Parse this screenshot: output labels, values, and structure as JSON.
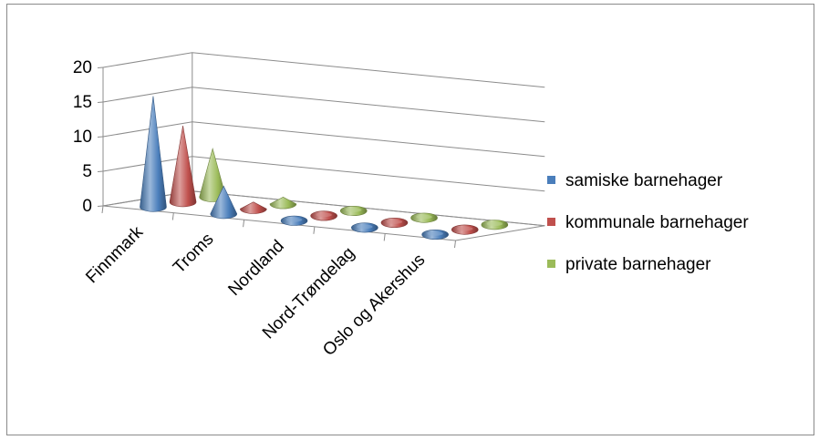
{
  "chart_data": {
    "type": "3d-cone-column",
    "title": "",
    "xlabel": "",
    "ylabel": "",
    "ylim": [
      0,
      20
    ],
    "yticks": [
      "0",
      "5",
      "10",
      "15",
      "20"
    ],
    "categories": [
      "Finnmark",
      "Troms",
      "Nordland",
      "Nord-Trøndelag",
      "Oslo og Akershus"
    ],
    "series": [
      {
        "name": "samiske barnehager",
        "color": "#4a7ebb",
        "values": [
          16,
          4,
          0,
          0,
          0
        ]
      },
      {
        "name": "kommunale barnehager",
        "color": "#c0504d",
        "values": [
          11,
          1,
          0,
          0,
          0
        ]
      },
      {
        "name": "private barnehager",
        "color": "#9bbb59",
        "values": [
          7,
          1,
          0,
          0,
          0
        ]
      }
    ],
    "grid": true,
    "legend": "right"
  }
}
